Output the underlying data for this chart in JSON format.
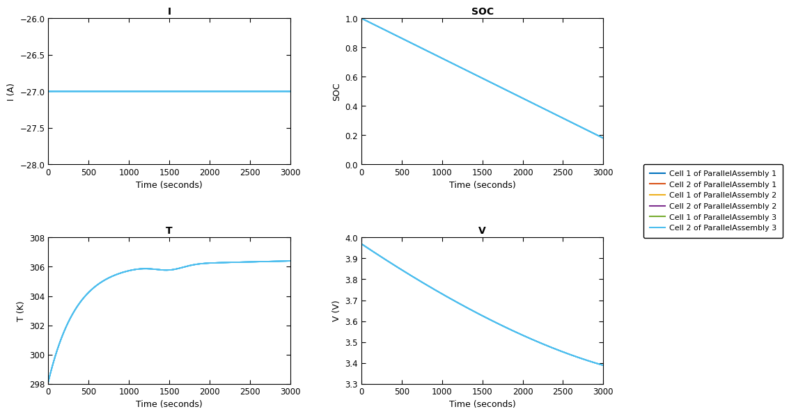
{
  "title_I": "I",
  "title_SOC": "SOC",
  "title_T": "T",
  "title_V": "V",
  "xlabel": "Time (seconds)",
  "ylabel_I": "I (A)",
  "ylabel_SOC": "SOC",
  "ylabel_T": "T (K)",
  "ylabel_V": "V (V)",
  "xlim": [
    0,
    3000
  ],
  "I_ylim": [
    -28,
    -26
  ],
  "SOC_ylim": [
    0,
    1
  ],
  "T_ylim": [
    298,
    308
  ],
  "V_ylim": [
    3.3,
    4.0
  ],
  "line_color": "#4DBEEE",
  "legend_labels": [
    "Cell 1 of ParallelAssembly 1",
    "Cell 2 of ParallelAssembly 1",
    "Cell 1 of ParallelAssembly 2",
    "Cell 2 of ParallelAssembly 2",
    "Cell 1 of ParallelAssembly 3",
    "Cell 2 of ParallelAssembly 3"
  ],
  "legend_line_colors": [
    "#0072BD",
    "#D95319",
    "#EDB120",
    "#7E2F8E",
    "#77AC30",
    "#4DBEEE"
  ],
  "background_color": "#ffffff",
  "I_yticks": [
    -28,
    -27.5,
    -27,
    -26.5,
    -26
  ],
  "SOC_yticks": [
    0,
    0.2,
    0.4,
    0.6,
    0.8,
    1.0
  ],
  "T_yticks": [
    298,
    300,
    302,
    304,
    306,
    308
  ],
  "V_yticks": [
    3.3,
    3.4,
    3.5,
    3.6,
    3.7,
    3.8,
    3.9,
    4.0
  ],
  "xticks": [
    0,
    500,
    1000,
    1500,
    2000,
    2500,
    3000
  ]
}
